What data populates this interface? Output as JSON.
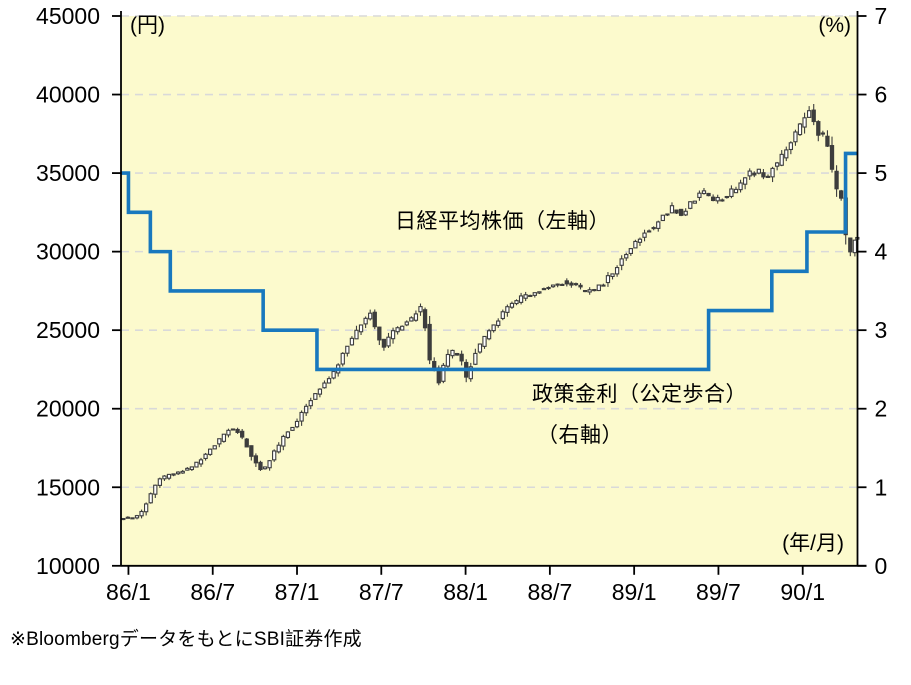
{
  "labels": {
    "left_unit": "(円)",
    "right_unit": "(%)",
    "x_unit": "(年/月)",
    "nikkei_series": "日経平均株価（左軸）",
    "rate_series_line1": "政策金利（公定歩合）",
    "rate_series_line2": "（右軸）",
    "source_note": "※BloombergデータをもとにSBI証券作成"
  },
  "chart_data": {
    "type": "candlestick+step",
    "title": "",
    "x_axis": {
      "unit_label": "(年/月)",
      "tick_labels": [
        "86/1",
        "86/7",
        "87/1",
        "87/7",
        "88/1",
        "88/7",
        "89/1",
        "89/7",
        "90/1"
      ],
      "tick_months": [
        0,
        6,
        12,
        18,
        24,
        30,
        36,
        42,
        48
      ],
      "min_month": -0.53,
      "max_month": 51.9
    },
    "y_left": {
      "unit_label": "(円)",
      "min": 10000,
      "max": 45000,
      "ticks": [
        45000,
        40000,
        35000,
        30000,
        25000,
        20000,
        15000,
        10000
      ]
    },
    "y_right": {
      "unit_label": "(%)",
      "min": 0,
      "max": 7,
      "ticks": [
        7,
        6,
        5,
        4,
        3,
        2,
        1,
        0
      ]
    },
    "grid": "horizontal-dashed",
    "legend_position": "inline-annotations",
    "colors": {
      "plot_bg": "#fcfacd",
      "grid": "#d9d9d9",
      "candle": "#3d3d3d",
      "candle_up_fill": "#ffffff",
      "rate_line": "#1878be",
      "axis": "#000000",
      "text": "#000000"
    },
    "series": [
      {
        "name": "日経平均株価（左軸）",
        "axis": "left",
        "style": "candlestick",
        "points_month_value": [
          [
            -0.5,
            13020
          ],
          [
            0.5,
            13060
          ],
          [
            1.1,
            13400
          ],
          [
            1.8,
            14650
          ],
          [
            2.3,
            15500
          ],
          [
            3.0,
            15750
          ],
          [
            3.8,
            15950
          ],
          [
            4.6,
            16250
          ],
          [
            5.4,
            16800
          ],
          [
            6.2,
            17600
          ],
          [
            7.0,
            18350
          ],
          [
            7.5,
            18800
          ],
          [
            8.1,
            18400
          ],
          [
            8.8,
            17200
          ],
          [
            9.7,
            15980
          ],
          [
            10.4,
            17050
          ],
          [
            11.3,
            18300
          ],
          [
            12.2,
            19300
          ],
          [
            12.8,
            20100
          ],
          [
            13.6,
            21200
          ],
          [
            14.3,
            21700
          ],
          [
            15.0,
            22700
          ],
          [
            15.7,
            23900
          ],
          [
            16.3,
            24800
          ],
          [
            17.0,
            25800
          ],
          [
            17.4,
            26050
          ],
          [
            17.9,
            24700
          ],
          [
            18.3,
            23900
          ],
          [
            19.0,
            24900
          ],
          [
            19.7,
            25250
          ],
          [
            20.4,
            25800
          ],
          [
            20.9,
            26500
          ],
          [
            21.2,
            26000
          ],
          [
            21.5,
            23100
          ],
          [
            21.9,
            22700
          ],
          [
            22.3,
            21600
          ],
          [
            22.7,
            23200
          ],
          [
            23.2,
            23650
          ],
          [
            23.8,
            23250
          ],
          [
            24.2,
            21950
          ],
          [
            24.8,
            23400
          ],
          [
            25.6,
            24700
          ],
          [
            26.4,
            25600
          ],
          [
            27.2,
            26500
          ],
          [
            28.0,
            27000
          ],
          [
            29.0,
            27400
          ],
          [
            30.0,
            27700
          ],
          [
            31.0,
            28050
          ],
          [
            31.8,
            27950
          ],
          [
            32.8,
            27400
          ],
          [
            33.8,
            27800
          ],
          [
            34.8,
            28900
          ],
          [
            35.8,
            30100
          ],
          [
            36.8,
            31100
          ],
          [
            37.8,
            31800
          ],
          [
            38.8,
            32800
          ],
          [
            39.5,
            32300
          ],
          [
            40.2,
            33100
          ],
          [
            41.0,
            33850
          ],
          [
            41.9,
            33300
          ],
          [
            42.6,
            33400
          ],
          [
            43.4,
            34100
          ],
          [
            44.2,
            34950
          ],
          [
            45.0,
            35100
          ],
          [
            45.6,
            34800
          ],
          [
            46.3,
            35600
          ],
          [
            47.0,
            36500
          ],
          [
            47.7,
            37600
          ],
          [
            48.2,
            38500
          ],
          [
            48.6,
            38880
          ],
          [
            49.0,
            38200
          ],
          [
            49.4,
            37300
          ],
          [
            49.7,
            37550
          ],
          [
            50.1,
            35800
          ],
          [
            50.5,
            34100
          ],
          [
            50.9,
            33400
          ],
          [
            51.2,
            31200
          ],
          [
            51.45,
            29150
          ],
          [
            51.7,
            31100
          ],
          [
            51.9,
            30800
          ]
        ]
      },
      {
        "name": "政策金利（公定歩合）（右軸）",
        "axis": "right",
        "style": "step",
        "steps_month_rate": [
          [
            -0.53,
            5.0
          ],
          [
            0.0,
            4.5
          ],
          [
            1.56,
            4.0
          ],
          [
            2.98,
            3.5
          ],
          [
            9.59,
            3.0
          ],
          [
            13.42,
            2.5
          ],
          [
            41.3,
            3.25
          ],
          [
            45.8,
            3.75
          ],
          [
            48.3,
            4.25
          ],
          [
            51.05,
            5.25
          ]
        ],
        "end_month": 51.9
      }
    ]
  }
}
